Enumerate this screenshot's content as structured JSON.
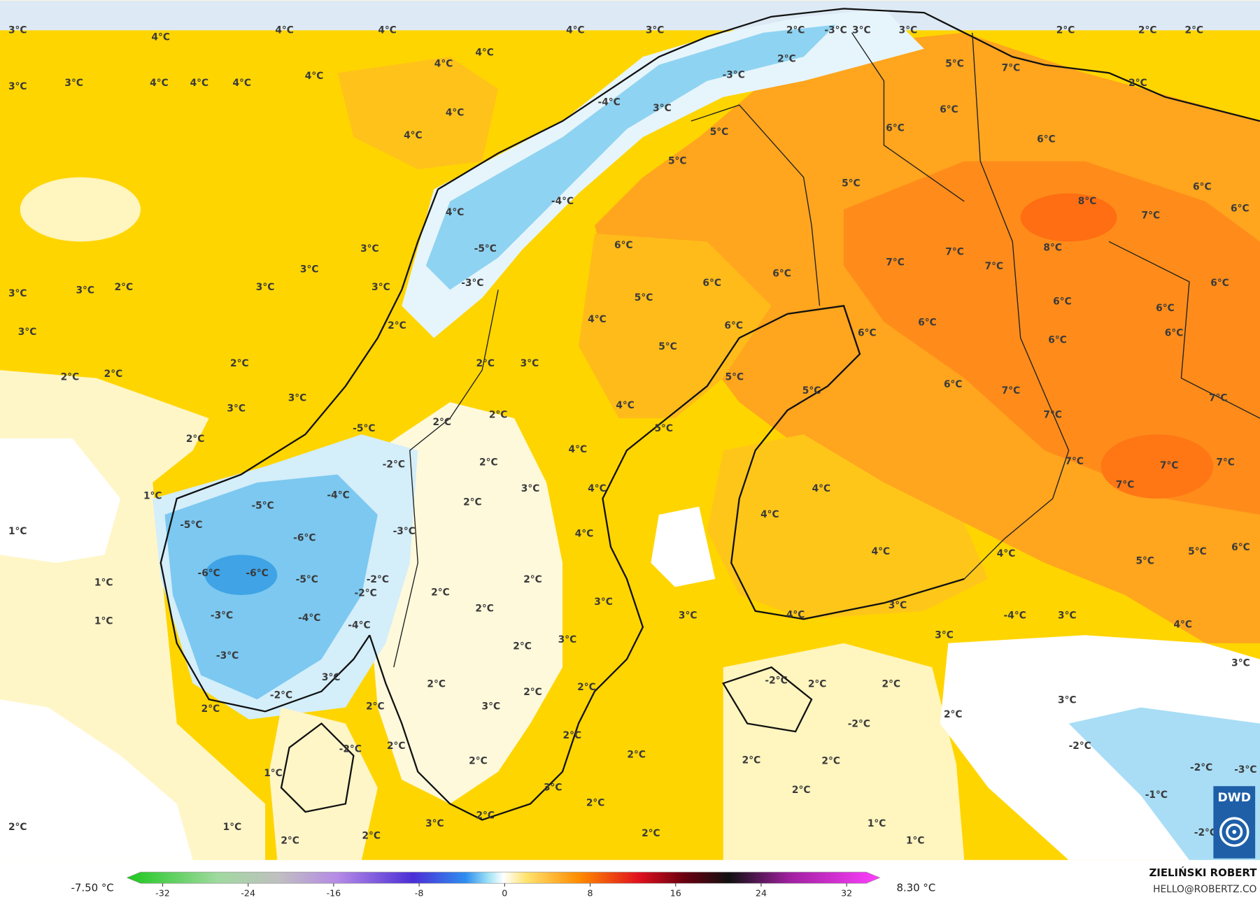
{
  "map": {
    "labels": [
      "3°C",
      "4°C",
      "4°C",
      "4°C",
      "4°C",
      "3°C",
      "2°C",
      "-3°C",
      "3°C",
      "3°C",
      "2°C",
      "2°C",
      "2°C",
      "4°C",
      "4°C",
      "3°C",
      "3°C",
      "4°C",
      "4°C",
      "4°C",
      "4°C",
      "4°C",
      "4°C",
      "2°C",
      "5°C",
      "7°C",
      "2°C",
      "3°C",
      "-3°C",
      "-4°C",
      "6°C",
      "6°C",
      "5°C",
      "5°C",
      "6°C",
      "5°C",
      "8°C",
      "6°C",
      "7°C",
      "6°C",
      "4°C",
      "-4°C",
      "6°C",
      "-5°C",
      "3°C",
      "3°C",
      "7°C",
      "7°C",
      "8°C",
      "7°C",
      "3°C",
      "3°C",
      "2°C",
      "3°C",
      "3°C",
      "-3°C",
      "6°C",
      "6°C",
      "5°C",
      "6°C",
      "6°C",
      "6°C",
      "3°C",
      "2°C",
      "4°C",
      "6°C",
      "6°C",
      "6°C",
      "6°C",
      "6°C",
      "5°C",
      "2°C",
      "3°C",
      "2°C",
      "2°C",
      "2°C",
      "5°C",
      "5°C",
      "6°C",
      "7°C",
      "7°C",
      "3°C",
      "3°C",
      "4°C",
      "2°C",
      "2°C",
      "-5°C",
      "5°C",
      "7°C",
      "2°C",
      "4°C",
      "-2°C",
      "2°C",
      "7°C",
      "7°C",
      "7°C",
      "1°C",
      "-4°C",
      "-5°C",
      "3°C",
      "4°C",
      "4°C",
      "7°C",
      "2°C",
      "1°C",
      "-5°C",
      "-6°C",
      "-3°C",
      "4°C",
      "4°C",
      "-6°C",
      "-6°C",
      "-5°C",
      "-2°C",
      "2°C",
      "4°C",
      "4°C",
      "5°C",
      "5°C",
      "6°C",
      "1°C",
      "-2°C",
      "2°C",
      "3°C",
      "3°C",
      "-4°C",
      "2°C",
      "1°C",
      "-3°C",
      "-4°C",
      "-4°C",
      "3°C",
      "4°C",
      "3°C",
      "4°C",
      "3°C",
      "2°C",
      "3°C",
      "-3°C",
      "3°C",
      "2°C",
      "-2°C",
      "2°C",
      "2°C",
      "2°C",
      "3°C",
      "-2°C",
      "2°C",
      "3°C",
      "3°C",
      "2°C",
      "2°C",
      "2°C",
      "-2°C",
      "2°C",
      "-2°C",
      "2°C",
      "-2°C",
      "2°C",
      "2°C",
      "2°C",
      "2°C",
      "1°C",
      "-2°C",
      "-3°C",
      "3°C",
      "2°C",
      "-1°C",
      "2°C",
      "1°C",
      "3°C",
      "2°C",
      "2°C",
      "1°C",
      "-2°C",
      "2°C",
      "2°C",
      "2°C",
      "1°C"
    ]
  },
  "colorbar": {
    "min_label": "-7.50 °C",
    "max_label": "8.30 °C",
    "ticks": [
      -32,
      -24,
      -16,
      -8,
      0,
      8,
      16,
      24,
      32
    ]
  },
  "credit": {
    "author": "ZIELIŃSKI ROBERT",
    "email": "HELLO@ROBERTZ.CO"
  },
  "logo": "DWD"
}
